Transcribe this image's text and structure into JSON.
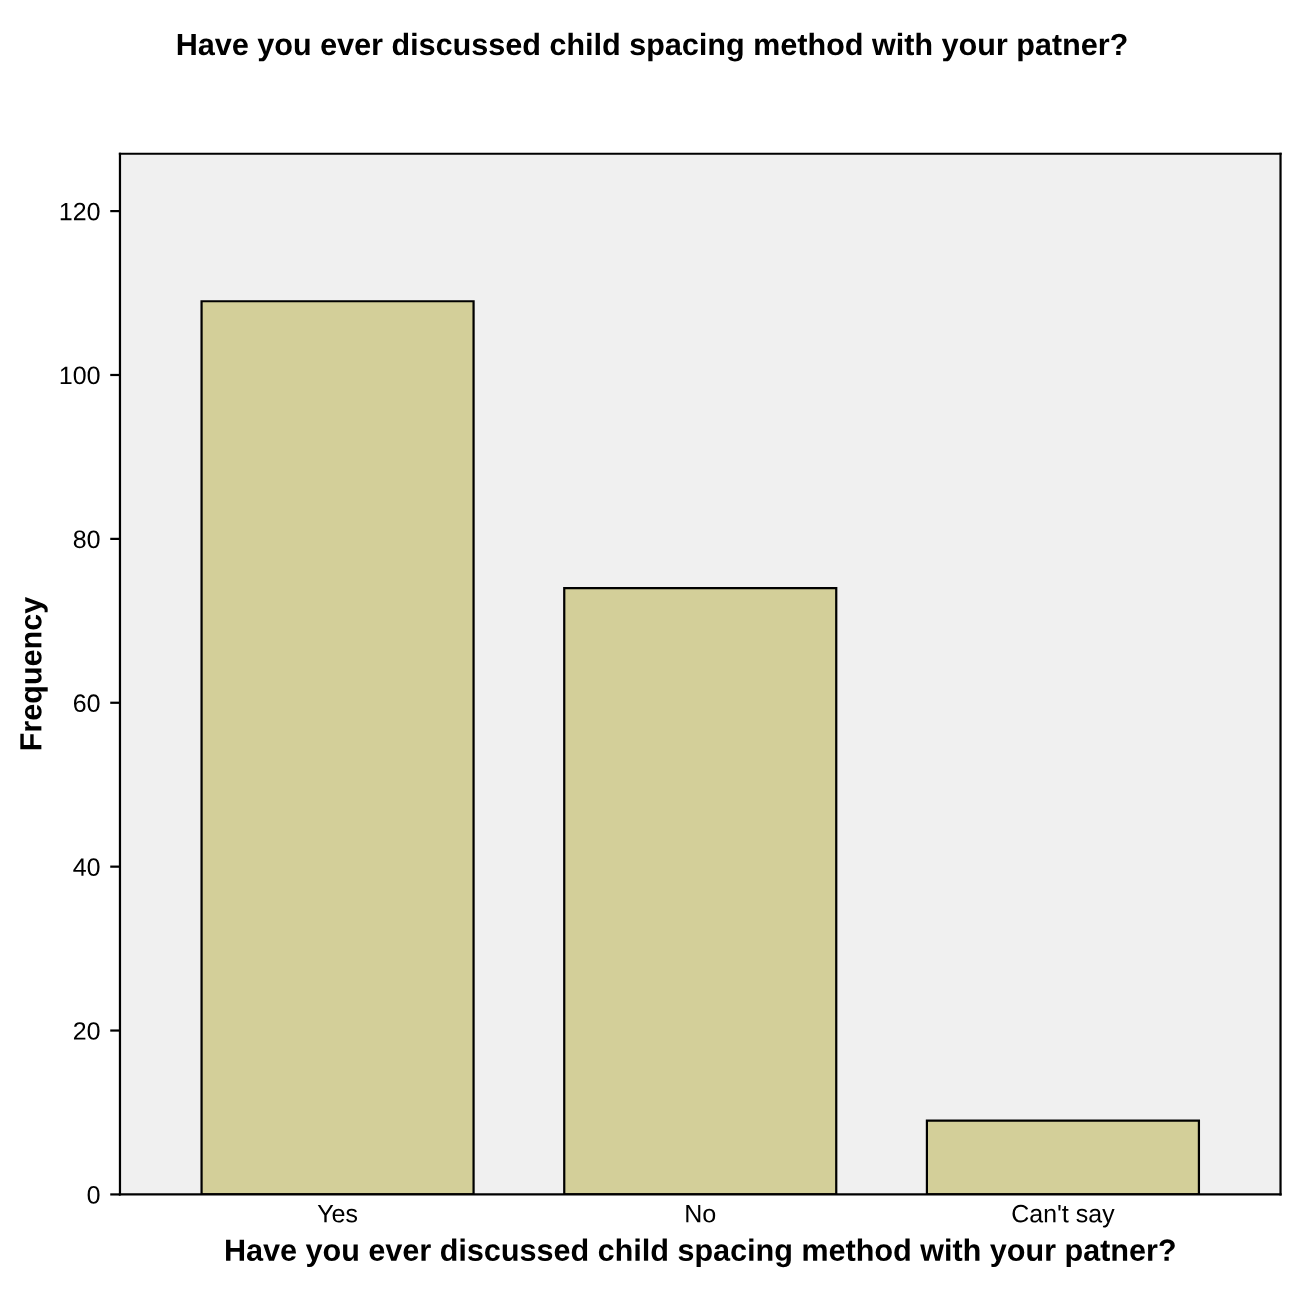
{
  "chart_data": {
    "type": "bar",
    "title": "Have you ever discussed child spacing method with your patner?",
    "xlabel": "Have you ever discussed child spacing method with your patner?",
    "ylabel": "Frequency",
    "categories": [
      "Yes",
      "No",
      "Can't say"
    ],
    "values": [
      109,
      74,
      9
    ],
    "color": "#d3cf99",
    "ylim": [
      0,
      127
    ],
    "yticks": [
      0,
      20,
      40,
      60,
      80,
      100,
      120
    ],
    "grid": false,
    "legend": false
  }
}
